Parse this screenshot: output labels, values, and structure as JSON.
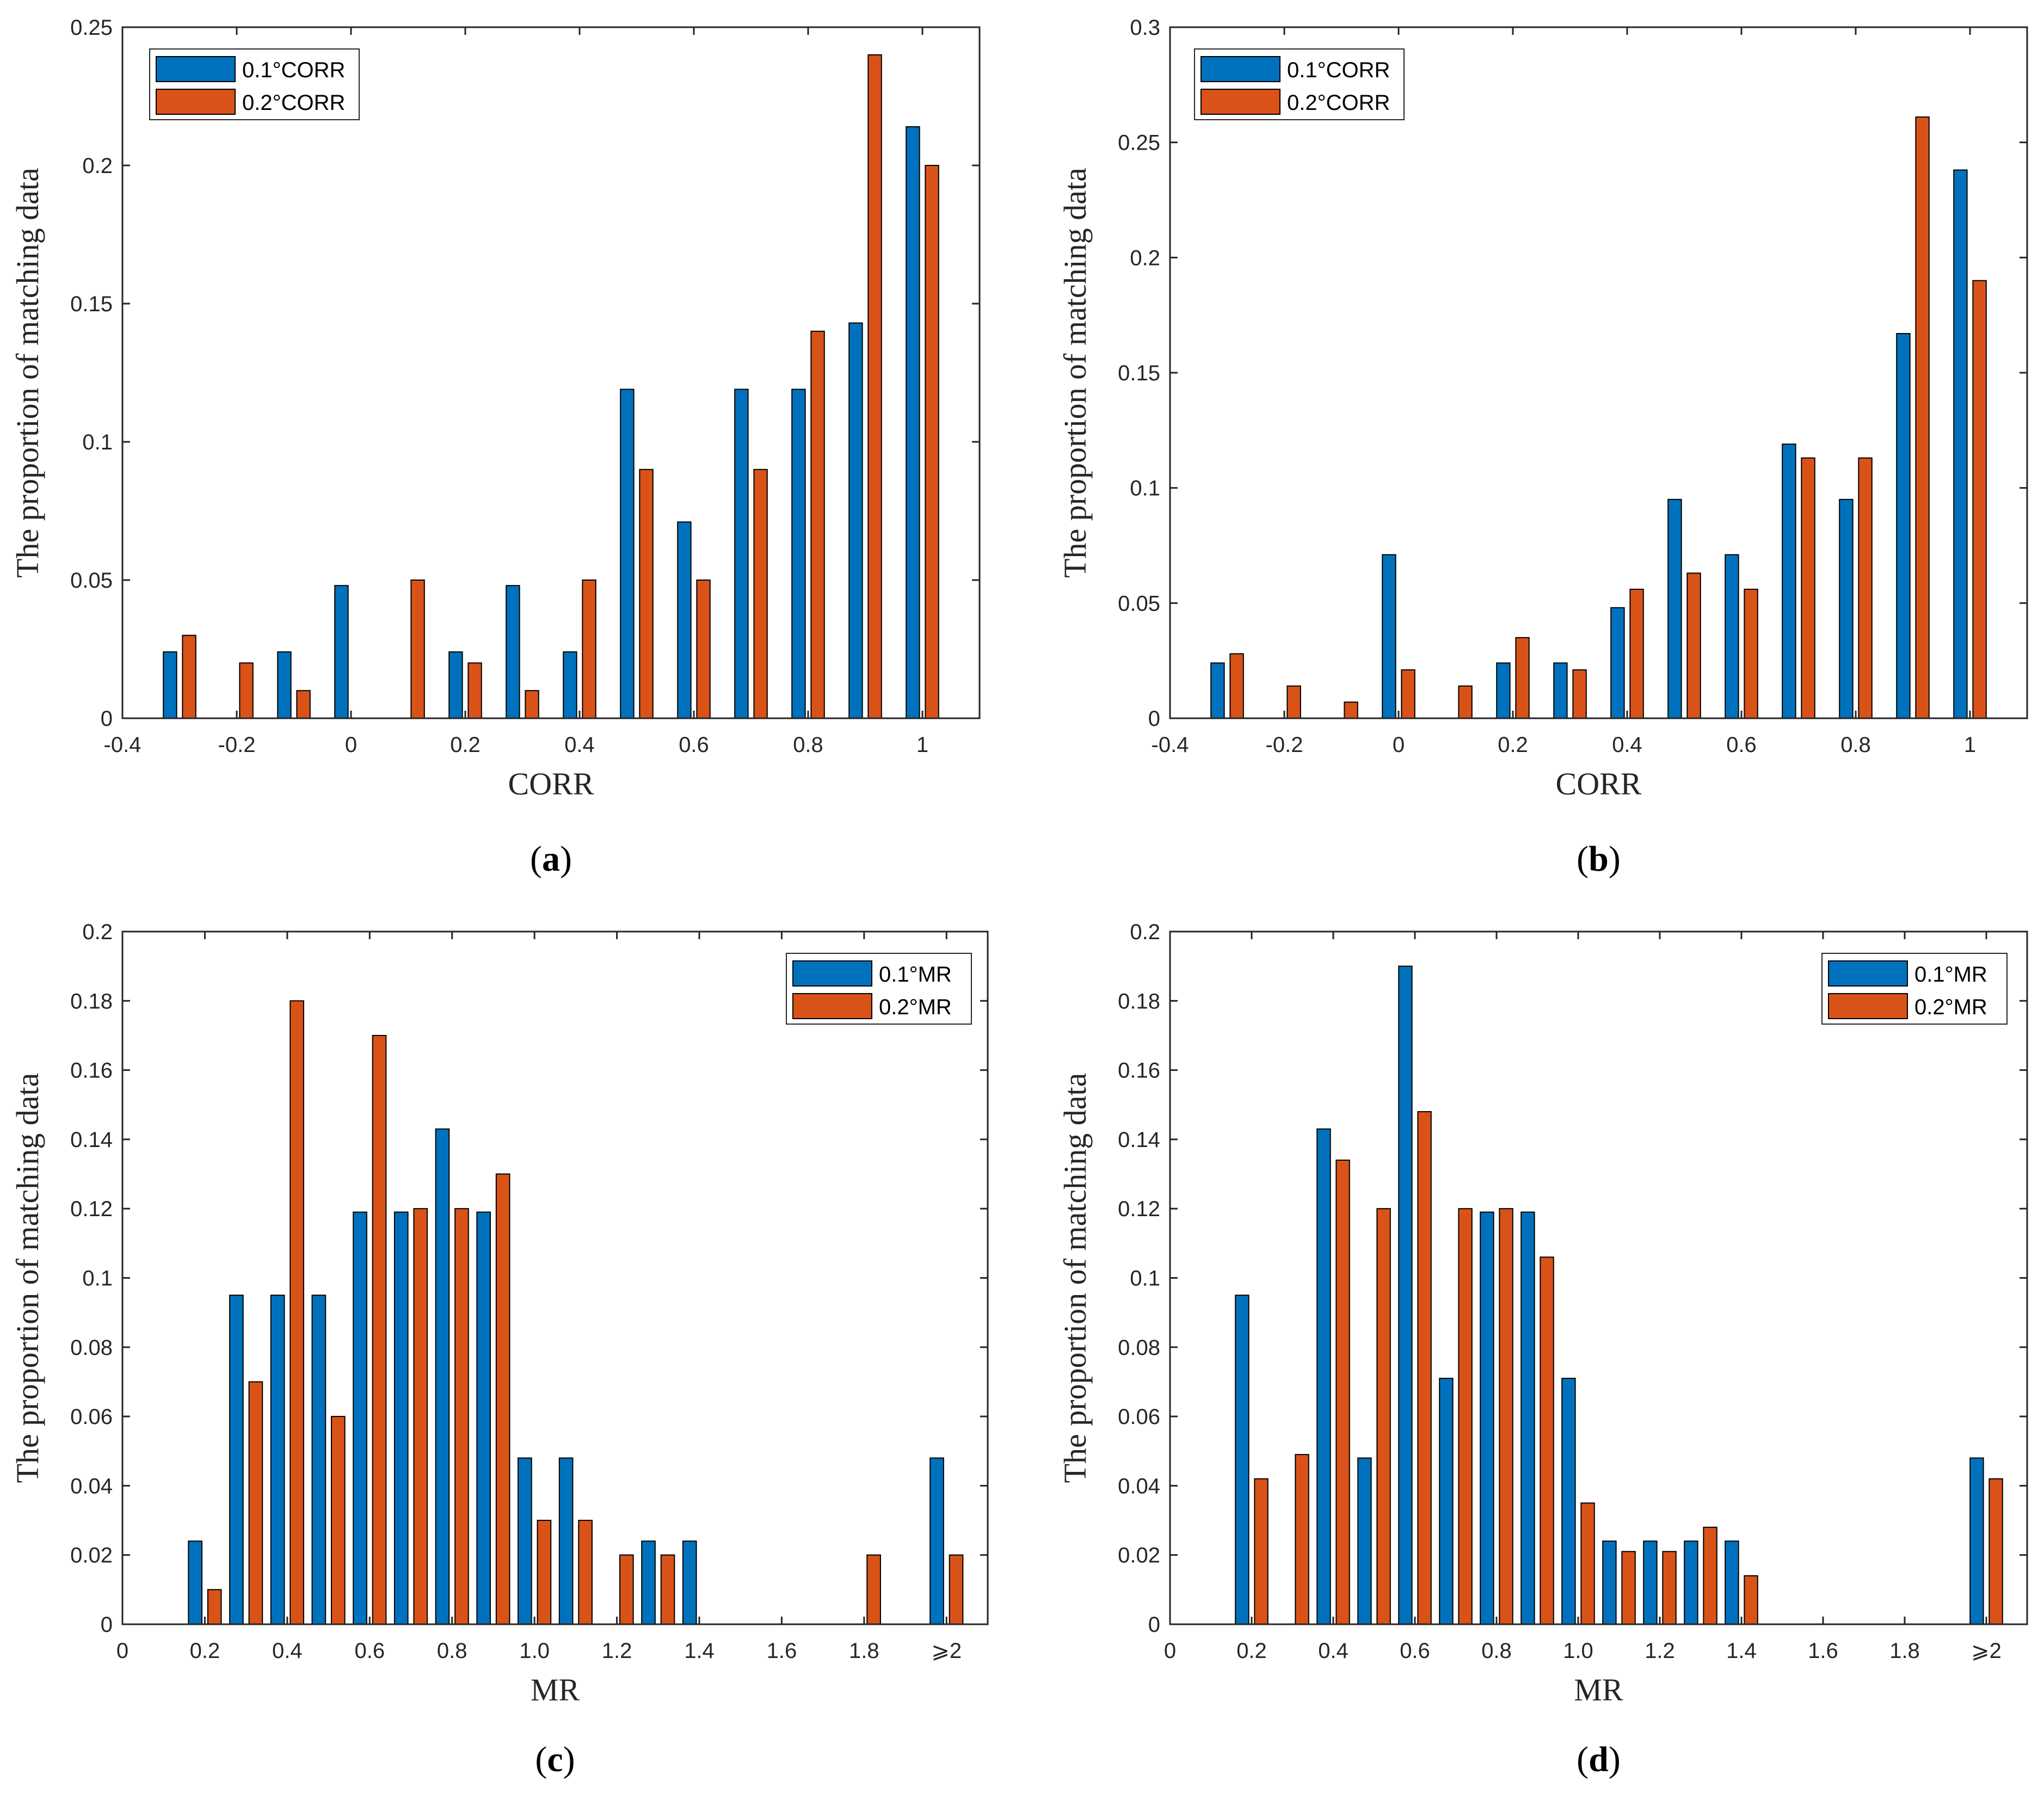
{
  "colors": {
    "series1": "#0072BD",
    "series2": "#D95319"
  },
  "chart_data": [
    {
      "panel": "a",
      "type": "bar",
      "caption_letter": "a",
      "xlabel": "CORR",
      "ylabel": "The proportion of matching data",
      "xlim": [
        -0.4,
        1.1
      ],
      "ylim": [
        0,
        0.25
      ],
      "xticks": [
        -0.4,
        -0.2,
        0,
        0.2,
        0.4,
        0.6,
        0.8,
        1
      ],
      "xtick_labels": [
        "-0.4",
        "-0.2",
        "0",
        "0.2",
        "0.4",
        "0.6",
        "0.8",
        "1"
      ],
      "yticks": [
        0,
        0.05,
        0.1,
        0.15,
        0.2,
        0.25
      ],
      "ytick_labels": [
        "0",
        "0.05",
        "0.1",
        "0.15",
        "0.2",
        "0.25"
      ],
      "legend_position": "top-left",
      "categories": [
        -0.3,
        -0.2,
        -0.1,
        0,
        0.1,
        0.2,
        0.3,
        0.4,
        0.5,
        0.6,
        0.7,
        0.8,
        0.9,
        1.0
      ],
      "series": [
        {
          "name": "0.1°CORR",
          "values": [
            0.024,
            0,
            0.024,
            0.048,
            0,
            0.024,
            0.048,
            0.024,
            0.119,
            0.071,
            0.119,
            0.119,
            0.143,
            0.214
          ]
        },
        {
          "name": "0.2°CORR",
          "values": [
            0.03,
            0.02,
            0.01,
            0,
            0.05,
            0.02,
            0.01,
            0.05,
            0.09,
            0.05,
            0.09,
            0.14,
            0.24,
            0.2
          ]
        }
      ]
    },
    {
      "panel": "b",
      "type": "bar",
      "caption_letter": "b",
      "xlabel": "CORR",
      "ylabel": "The proportion of matching data",
      "xlim": [
        -0.4,
        1.1
      ],
      "ylim": [
        0,
        0.3
      ],
      "xticks": [
        -0.4,
        -0.2,
        0,
        0.2,
        0.4,
        0.6,
        0.8,
        1
      ],
      "xtick_labels": [
        "-0.4",
        "-0.2",
        "0",
        "0.2",
        "0.4",
        "0.6",
        "0.8",
        "1"
      ],
      "yticks": [
        0,
        0.05,
        0.1,
        0.15,
        0.2,
        0.25,
        0.3
      ],
      "ytick_labels": [
        "0",
        "0.05",
        "0.1",
        "0.15",
        "0.2",
        "0.25",
        "0.3"
      ],
      "legend_position": "top-left",
      "categories": [
        -0.3,
        -0.2,
        -0.1,
        0,
        0.1,
        0.2,
        0.3,
        0.4,
        0.5,
        0.6,
        0.7,
        0.8,
        0.9,
        1.0
      ],
      "series": [
        {
          "name": "0.1°CORR",
          "values": [
            0.024,
            0,
            0,
            0.071,
            0,
            0.024,
            0.024,
            0.048,
            0.095,
            0.071,
            0.119,
            0.095,
            0.167,
            0.238
          ]
        },
        {
          "name": "0.2°CORR",
          "values": [
            0.028,
            0.014,
            0.007,
            0.021,
            0.014,
            0.035,
            0.021,
            0.056,
            0.063,
            0.056,
            0.113,
            0.113,
            0.261,
            0.19
          ]
        }
      ]
    },
    {
      "panel": "c",
      "type": "bar",
      "caption_letter": "c",
      "xlabel": "MR",
      "ylabel": "The proportion of matching data",
      "xlim": [
        0,
        2.1
      ],
      "ylim": [
        0,
        0.2
      ],
      "xticks": [
        0,
        0.2,
        0.4,
        0.6,
        0.8,
        1.0,
        1.2,
        1.4,
        1.6,
        1.8,
        2.0
      ],
      "xtick_labels": [
        "0",
        "0.2",
        "0.4",
        "0.6",
        "0.8",
        "1.0",
        "1.2",
        "1.4",
        "1.6",
        "1.8",
        "⩾2"
      ],
      "yticks": [
        0,
        0.02,
        0.04,
        0.06,
        0.08,
        0.1,
        0.12,
        0.14,
        0.16,
        0.18,
        0.2
      ],
      "ytick_labels": [
        "0",
        "0.02",
        "0.04",
        "0.06",
        "0.08",
        "0.1",
        "0.12",
        "0.14",
        "0.16",
        "0.18",
        "0.2"
      ],
      "legend_position": "top-right",
      "categories": [
        0.2,
        0.3,
        0.4,
        0.5,
        0.6,
        0.7,
        0.8,
        0.9,
        1.0,
        1.1,
        1.2,
        1.3,
        1.4,
        1.5,
        1.6,
        1.7,
        1.8,
        1.9,
        2.0
      ],
      "series": [
        {
          "name": "0.1°MR",
          "values": [
            0.024,
            0.095,
            0.095,
            0.095,
            0.119,
            0.119,
            0.143,
            0.119,
            0.048,
            0.048,
            0,
            0.024,
            0.024,
            0,
            0,
            0,
            0,
            0,
            0.048
          ]
        },
        {
          "name": "0.2°MR",
          "values": [
            0.01,
            0.07,
            0.18,
            0.06,
            0.17,
            0.12,
            0.12,
            0.13,
            0.03,
            0.03,
            0.02,
            0.02,
            0,
            0,
            0,
            0,
            0.02,
            0,
            0.02
          ]
        }
      ]
    },
    {
      "panel": "d",
      "type": "bar",
      "caption_letter": "d",
      "xlabel": "MR",
      "ylabel": "The proportion of matching data",
      "xlim": [
        0,
        2.1
      ],
      "ylim": [
        0,
        0.2
      ],
      "xticks": [
        0,
        0.2,
        0.4,
        0.6,
        0.8,
        1.0,
        1.2,
        1.4,
        1.6,
        1.8,
        2.0
      ],
      "xtick_labels": [
        "0",
        "0.2",
        "0.4",
        "0.6",
        "0.8",
        "1.0",
        "1.2",
        "1.4",
        "1.6",
        "1.8",
        "⩾2"
      ],
      "yticks": [
        0,
        0.02,
        0.04,
        0.06,
        0.08,
        0.1,
        0.12,
        0.14,
        0.16,
        0.18,
        0.2
      ],
      "ytick_labels": [
        "0",
        "0.02",
        "0.04",
        "0.06",
        "0.08",
        "0.1",
        "0.12",
        "0.14",
        "0.16",
        "0.18",
        "0.2"
      ],
      "legend_position": "top-right",
      "categories": [
        0.2,
        0.3,
        0.4,
        0.5,
        0.6,
        0.7,
        0.8,
        0.9,
        1.0,
        1.1,
        1.2,
        1.3,
        1.4,
        1.5,
        1.6,
        1.7,
        1.8,
        1.9,
        2.0
      ],
      "series": [
        {
          "name": "0.1°MR",
          "values": [
            0.095,
            0,
            0.143,
            0.048,
            0.19,
            0.071,
            0.119,
            0.119,
            0.071,
            0.024,
            0.024,
            0.024,
            0.024,
            0,
            0,
            0,
            0,
            0,
            0.048
          ]
        },
        {
          "name": "0.2°MR",
          "values": [
            0.042,
            0.049,
            0.134,
            0.12,
            0.148,
            0.12,
            0.12,
            0.106,
            0.035,
            0.021,
            0.021,
            0.028,
            0.014,
            0,
            0,
            0,
            0,
            0,
            0.042
          ]
        }
      ]
    }
  ]
}
